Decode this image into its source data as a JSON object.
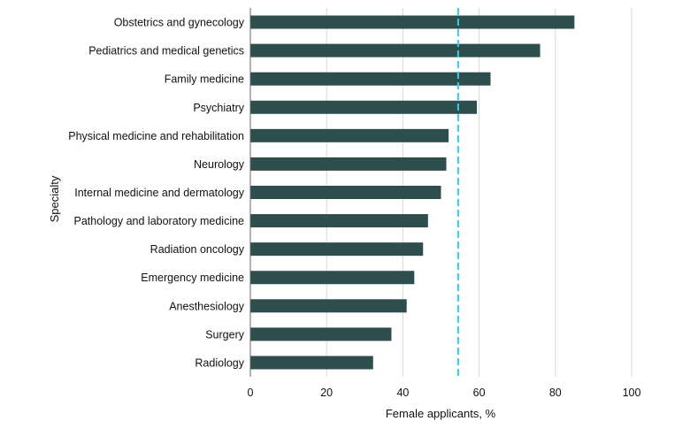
{
  "chart_data": {
    "type": "bar",
    "orientation": "horizontal",
    "categories": [
      "Obstetrics and gynecology",
      "Pediatrics and medical genetics",
      "Family medicine",
      "Psychiatry",
      "Physical medicine and rehabilitation",
      "Neurology",
      "Internal medicine and dermatology",
      "Pathology and laboratory medicine",
      "Radiation oncology",
      "Emergency medicine",
      "Anesthesiology",
      "Surgery",
      "Radiology"
    ],
    "values": [
      85,
      76,
      63,
      59.4,
      52,
      51.4,
      50,
      46.6,
      45.3,
      43,
      41,
      37,
      32.2
    ],
    "xlabel": "Female applicants, %",
    "ylabel": "Specialty",
    "xlim": [
      0,
      100
    ],
    "xticks": [
      0,
      20,
      40,
      60,
      80,
      100
    ],
    "reference_line": {
      "value": 54.5,
      "style": "dashed"
    },
    "grid": "vertical",
    "bar_color": "#2e4d4d",
    "reference_color": "#2fd0ea"
  }
}
